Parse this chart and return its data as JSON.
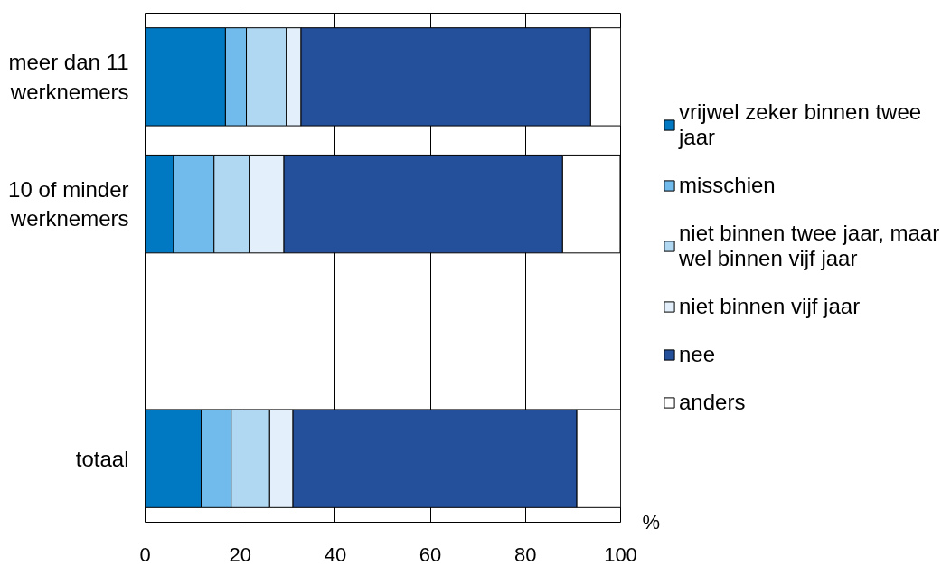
{
  "chart_data": {
    "type": "bar",
    "orientation": "horizontal",
    "stacked": true,
    "categories": [
      "meer dan 11 werknemers",
      "10 of minder werknemers",
      null,
      "totaal"
    ],
    "series": [
      {
        "name": "vrijwel zeker binnen twee jaar",
        "color": "#0079c2",
        "values": [
          16.9,
          6.0,
          null,
          11.8
        ]
      },
      {
        "name": "misschien",
        "color": "#70bbeb",
        "values": [
          4.4,
          8.5,
          null,
          6.3
        ]
      },
      {
        "name": "niet binnen twee jaar, maar wel binnen vijf jaar",
        "color": "#b1d8f3",
        "values": [
          8.4,
          7.4,
          null,
          8.1
        ]
      },
      {
        "name": "niet binnen vijf jaar",
        "color": "#e3f0fb",
        "values": [
          3.1,
          7.3,
          null,
          4.9
        ]
      },
      {
        "name": "nee",
        "color": "#244f9b",
        "values": [
          60.9,
          58.6,
          null,
          59.7
        ]
      },
      {
        "name": "anders",
        "color": "#ffffff",
        "values": [
          6.3,
          12.1,
          null,
          9.2
        ]
      }
    ],
    "xlabel": "%",
    "xlim": [
      0,
      100
    ],
    "xticks": [
      0,
      20,
      40,
      60,
      80,
      100
    ],
    "grid": "x",
    "legend": "right"
  }
}
